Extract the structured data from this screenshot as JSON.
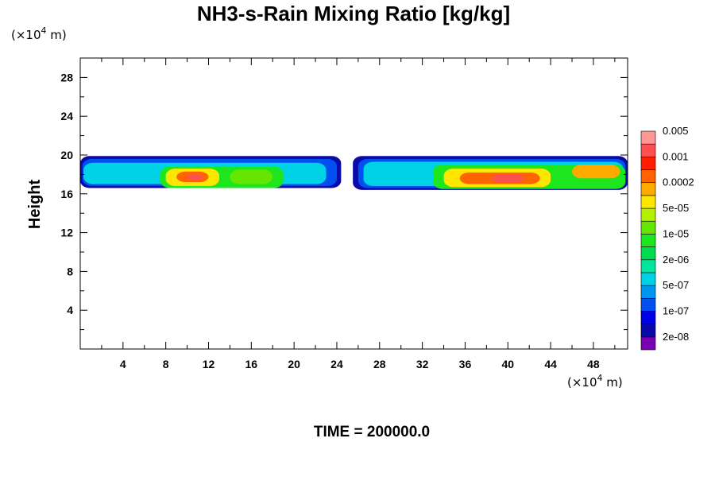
{
  "chart_data": {
    "type": "heatmap",
    "title": "NH3-s-Rain Mixing Ratio [kg/kg]",
    "ylabel": "Height",
    "xunit_prefix": "(×10",
    "xunit_exp": "4",
    "xunit_suffix": " m)",
    "yunit_prefix": "(×10",
    "yunit_exp": "4",
    "yunit_suffix": " m)",
    "xlim": [
      0,
      51.2
    ],
    "ylim": [
      0,
      30
    ],
    "x_ticks": [
      "4",
      "8",
      "12",
      "16",
      "20",
      "24",
      "28",
      "32",
      "36",
      "40",
      "44",
      "48"
    ],
    "y_ticks": [
      "4",
      "8",
      "12",
      "16",
      "20",
      "24",
      "28"
    ],
    "footer": "TIME = 200000.0",
    "colorbar": {
      "colors": [
        "#7a00b4",
        "#0a0aa8",
        "#0000e6",
        "#0050f0",
        "#0096f0",
        "#00d2e6",
        "#00e6a0",
        "#00dc50",
        "#1ee61e",
        "#64e600",
        "#b4f000",
        "#ffe600",
        "#ffaa00",
        "#ff6400",
        "#ff1e00",
        "#ff5050",
        "#ff9696"
      ],
      "labels": [
        "2e-08",
        "1e-07",
        "5e-07",
        "2e-06",
        "1e-05",
        "5e-05",
        "0.0002",
        "0.001",
        "0.005"
      ]
    },
    "regions": [
      {
        "x0": 0.0,
        "x1": 24.4,
        "y0": 16.6,
        "y1": 19.9,
        "level": 1
      },
      {
        "x0": 0.2,
        "x1": 24.0,
        "y0": 16.8,
        "y1": 19.6,
        "level": 3
      },
      {
        "x0": 0.3,
        "x1": 23.0,
        "y0": 17.0,
        "y1": 19.2,
        "level": 5
      },
      {
        "x0": 7.5,
        "x1": 19.0,
        "y0": 16.6,
        "y1": 18.8,
        "level": 8
      },
      {
        "x0": 8.0,
        "x1": 13.0,
        "y0": 16.8,
        "y1": 18.6,
        "level": 11
      },
      {
        "x0": 9.0,
        "x1": 12.0,
        "y0": 17.2,
        "y1": 18.3,
        "level": 13
      },
      {
        "x0": 10.0,
        "x1": 11.5,
        "y0": 17.4,
        "y1": 18.0,
        "level": 15
      },
      {
        "x0": 14.0,
        "x1": 18.0,
        "y0": 17.0,
        "y1": 18.5,
        "level": 9
      },
      {
        "x0": 25.5,
        "x1": 51.2,
        "y0": 16.4,
        "y1": 19.9,
        "level": 1
      },
      {
        "x0": 26.0,
        "x1": 51.0,
        "y0": 16.6,
        "y1": 19.6,
        "level": 3
      },
      {
        "x0": 26.5,
        "x1": 50.8,
        "y0": 16.8,
        "y1": 19.3,
        "level": 5
      },
      {
        "x0": 33.0,
        "x1": 51.0,
        "y0": 16.5,
        "y1": 19.0,
        "level": 8
      },
      {
        "x0": 34.0,
        "x1": 44.0,
        "y0": 16.7,
        "y1": 18.6,
        "level": 11
      },
      {
        "x0": 35.5,
        "x1": 43.0,
        "y0": 17.0,
        "y1": 18.2,
        "level": 13
      },
      {
        "x0": 38.5,
        "x1": 41.5,
        "y0": 17.2,
        "y1": 18.0,
        "level": 15
      },
      {
        "x0": 46.0,
        "x1": 50.5,
        "y0": 17.6,
        "y1": 19.0,
        "level": 12
      }
    ]
  }
}
